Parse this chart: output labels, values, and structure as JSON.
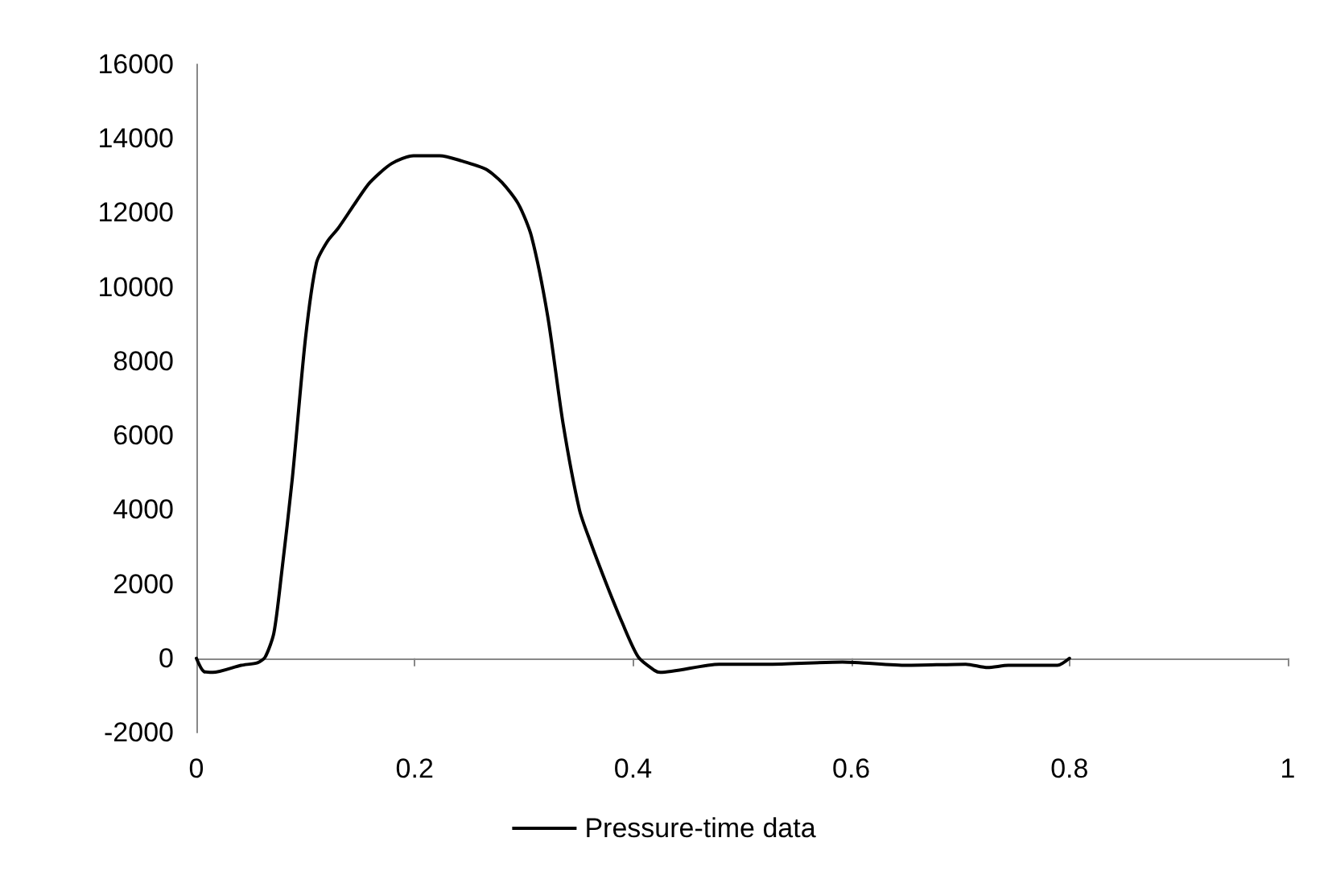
{
  "chart_data": {
    "type": "line",
    "x": [
      0,
      0.007,
      0.015,
      0.041,
      0.056,
      0.063,
      0.071,
      0.078,
      0.088,
      0.1,
      0.11,
      0.12,
      0.13,
      0.145,
      0.159,
      0.179,
      0.199,
      0.223,
      0.243,
      0.265,
      0.28,
      0.295,
      0.307,
      0.322,
      0.336,
      0.351,
      0.361,
      0.376,
      0.39,
      0.405,
      0.42,
      0.425,
      0.479,
      0.528,
      0.592,
      0.651,
      0.705,
      0.725,
      0.744,
      0.789,
      0.8
    ],
    "series": [
      {
        "name": "Pressure-time data",
        "color": "#000000",
        "values": [
          0,
          -360,
          -380,
          -190,
          -120,
          30,
          680,
          2270,
          4870,
          8630,
          10650,
          11230,
          11590,
          12240,
          12820,
          13330,
          13540,
          13540,
          13400,
          13180,
          12820,
          12240,
          11370,
          9200,
          6320,
          4000,
          3140,
          1980,
          970,
          30,
          -330,
          -380,
          -160,
          -160,
          -100,
          -190,
          -160,
          -250,
          -190,
          -190,
          0
        ]
      }
    ],
    "xlim": [
      0,
      1
    ],
    "xticks": [
      0,
      0.2,
      0.4,
      0.6,
      0.8,
      1
    ],
    "ylim": [
      -2000,
      16000
    ],
    "yticks": [
      -2000,
      0,
      2000,
      4000,
      6000,
      8000,
      10000,
      12000,
      14000,
      16000
    ],
    "legend": "bottom",
    "marker": "none",
    "line_style": "solid"
  }
}
